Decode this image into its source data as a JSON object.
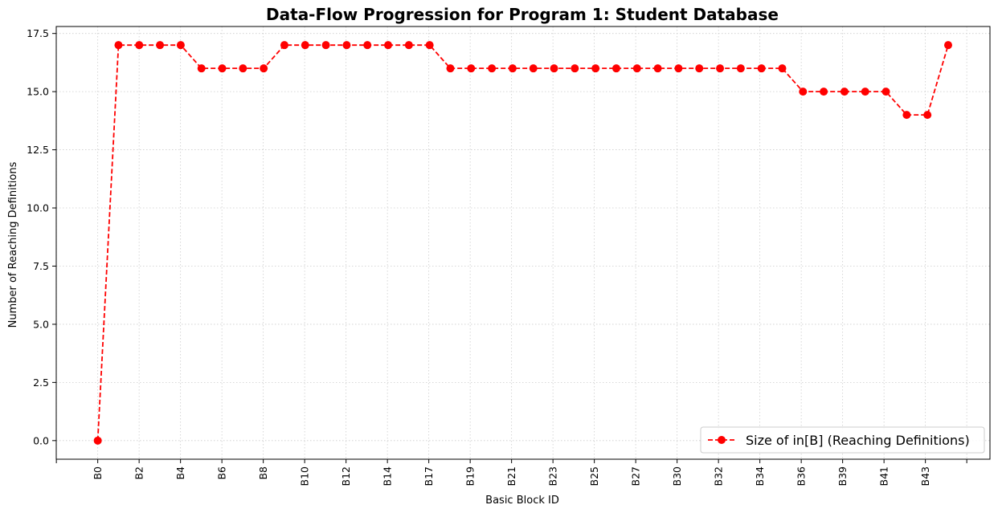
{
  "chart_data": {
    "type": "line",
    "title": "Data-Flow Progression for Program 1: Student Database",
    "xlabel": "Basic Block ID",
    "ylabel": "Number of Reaching Definitions",
    "ylim": [
      -0.8,
      17.8
    ],
    "yticks": [
      0.0,
      2.5,
      5.0,
      7.5,
      10.0,
      12.5,
      15.0,
      17.5
    ],
    "ytick_labels": [
      "0.0",
      "2.5",
      "5.0",
      "7.5",
      "10.0",
      "12.5",
      "15.0",
      "17.5"
    ],
    "xtick_labels": [
      "B0",
      "B2",
      "B4",
      "B6",
      "B8",
      "B10",
      "B12",
      "B14",
      "B17",
      "B19",
      "B21",
      "B23",
      "B25",
      "B27",
      "B30",
      "B32",
      "B34",
      "B36",
      "B39",
      "B41",
      "B43"
    ],
    "grid": true,
    "legend_position": "lower-right",
    "series": [
      {
        "name": "Size of in[B] (Reaching Definitions)",
        "color": "#ff0000",
        "line_style": "dashed",
        "marker": "circle",
        "values": [
          0,
          17,
          17,
          17,
          17,
          16,
          16,
          16,
          16,
          17,
          17,
          17,
          17,
          17,
          17,
          17,
          17,
          16,
          16,
          16,
          16,
          16,
          16,
          16,
          16,
          16,
          16,
          16,
          16,
          16,
          16,
          16,
          16,
          16,
          15,
          15,
          15,
          15,
          15,
          14,
          14,
          17
        ]
      }
    ]
  }
}
